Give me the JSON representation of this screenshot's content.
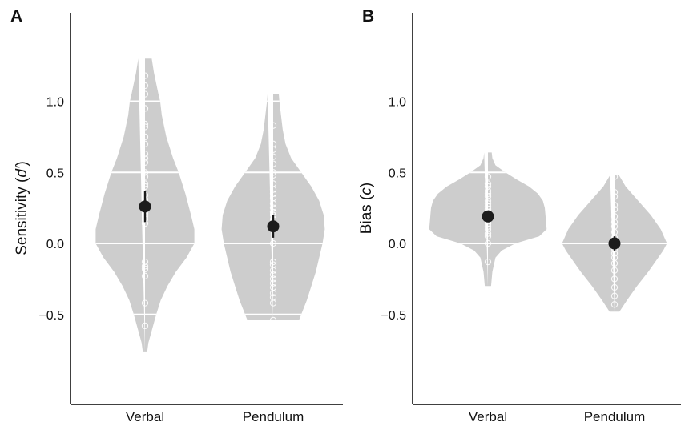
{
  "figure": {
    "colors": {
      "violin": "#cdcdcd",
      "gridline": "#ffffff",
      "point": "#ffffff",
      "mean": "#1c1c1c",
      "axis": "#000000"
    }
  },
  "chart_data": [
    {
      "panel": "A",
      "type": "violin",
      "ylabel_plain": "Sensitivity (",
      "ylabel_italic": "d′",
      "ylabel_close": ")",
      "ylim": [
        -1.1,
        1.32
      ],
      "yticks": [
        1.0,
        0.5,
        0.0,
        -0.5
      ],
      "ytick_labels": [
        "1.0",
        "0.5",
        "0.0",
        "−0.5"
      ],
      "categories": [
        "Verbal",
        "Pendulum"
      ],
      "violins": [
        {
          "category": "Verbal",
          "mean": 0.26,
          "ci": [
            0.15,
            0.37
          ],
          "profile": [
            [
              1.3,
              0.12
            ],
            [
              1.2,
              0.16
            ],
            [
              1.05,
              0.24
            ],
            [
              1.0,
              0.27
            ],
            [
              0.9,
              0.3
            ],
            [
              0.75,
              0.38
            ],
            [
              0.6,
              0.5
            ],
            [
              0.5,
              0.6
            ],
            [
              0.35,
              0.72
            ],
            [
              0.2,
              0.82
            ],
            [
              0.1,
              0.88
            ],
            [
              0.0,
              0.88
            ],
            [
              -0.1,
              0.74
            ],
            [
              -0.2,
              0.55
            ],
            [
              -0.3,
              0.4
            ],
            [
              -0.4,
              0.28
            ],
            [
              -0.5,
              0.2
            ],
            [
              -0.6,
              0.13
            ],
            [
              -0.7,
              0.06
            ],
            [
              -0.76,
              0.04
            ]
          ],
          "points": [
            1.18,
            1.11,
            1.05,
            0.95,
            0.84,
            0.82,
            0.75,
            0.7,
            0.63,
            0.6,
            0.57,
            0.5,
            0.47,
            0.42,
            0.4,
            0.34,
            0.31,
            0.27,
            0.23,
            0.21,
            0.19,
            0.17,
            0.14,
            -0.13,
            -0.16,
            -0.18,
            -0.23,
            -0.42,
            -0.58
          ]
        },
        {
          "category": "Pendulum",
          "mean": 0.12,
          "ci": [
            0.04,
            0.2
          ],
          "profile": [
            [
              1.05,
              0.1
            ],
            [
              1.0,
              0.11
            ],
            [
              0.9,
              0.14
            ],
            [
              0.8,
              0.17
            ],
            [
              0.7,
              0.22
            ],
            [
              0.6,
              0.32
            ],
            [
              0.5,
              0.5
            ],
            [
              0.4,
              0.68
            ],
            [
              0.3,
              0.82
            ],
            [
              0.2,
              0.9
            ],
            [
              0.1,
              0.92
            ],
            [
              0.0,
              0.88
            ],
            [
              -0.1,
              0.82
            ],
            [
              -0.2,
              0.76
            ],
            [
              -0.3,
              0.68
            ],
            [
              -0.4,
              0.6
            ],
            [
              -0.45,
              0.55
            ],
            [
              -0.5,
              0.5
            ],
            [
              -0.54,
              0.46
            ]
          ],
          "points": [
            0.83,
            0.7,
            0.66,
            0.61,
            0.56,
            0.5,
            0.48,
            0.42,
            0.38,
            0.35,
            0.32,
            0.28,
            0.25,
            0.22,
            0.2,
            0.17,
            0.13,
            0.0,
            -0.13,
            -0.15,
            -0.19,
            -0.22,
            -0.25,
            -0.28,
            -0.31,
            -0.35,
            -0.38,
            -0.42,
            -0.54
          ]
        }
      ]
    },
    {
      "panel": "B",
      "type": "violin",
      "ylabel_plain": "Bias (",
      "ylabel_italic": "c",
      "ylabel_close": ")",
      "ylim": [
        -1.1,
        1.62
      ],
      "yticks": [
        1.0,
        0.5,
        0.0,
        -0.5
      ],
      "ytick_labels": [
        "1.0",
        "0.5",
        "0.0",
        "−0.5"
      ],
      "categories": [
        "Verbal",
        "Pendulum"
      ],
      "violins": [
        {
          "category": "Verbal",
          "mean": 0.19,
          "ci": [
            0.16,
            0.22
          ],
          "profile": [
            [
              0.64,
              0.06
            ],
            [
              0.6,
              0.07
            ],
            [
              0.55,
              0.12
            ],
            [
              0.5,
              0.28
            ],
            [
              0.45,
              0.46
            ],
            [
              0.4,
              0.66
            ],
            [
              0.35,
              0.8
            ],
            [
              0.3,
              0.88
            ],
            [
              0.25,
              0.91
            ],
            [
              0.2,
              0.92
            ],
            [
              0.15,
              0.93
            ],
            [
              0.1,
              0.94
            ],
            [
              0.05,
              0.82
            ],
            [
              0.0,
              0.44
            ],
            [
              -0.05,
              0.22
            ],
            [
              -0.1,
              0.12
            ],
            [
              -0.2,
              0.07
            ],
            [
              -0.3,
              0.05
            ]
          ],
          "points": [
            0.47,
            0.42,
            0.4,
            0.37,
            0.35,
            0.33,
            0.3,
            0.28,
            0.26,
            0.24,
            0.22,
            0.2,
            0.18,
            0.16,
            0.14,
            0.12,
            0.1,
            0.07,
            0.05,
            0.0,
            -0.13
          ]
        },
        {
          "category": "Pendulum",
          "mean": 0.0,
          "ci": [
            -0.05,
            0.05
          ],
          "profile": [
            [
              0.48,
              0.07
            ],
            [
              0.4,
              0.18
            ],
            [
              0.3,
              0.38
            ],
            [
              0.2,
              0.58
            ],
            [
              0.1,
              0.74
            ],
            [
              0.0,
              0.84
            ],
            [
              -0.05,
              0.78
            ],
            [
              -0.1,
              0.7
            ],
            [
              -0.2,
              0.54
            ],
            [
              -0.3,
              0.36
            ],
            [
              -0.4,
              0.2
            ],
            [
              -0.48,
              0.08
            ]
          ],
          "points": [
            0.47,
            0.36,
            0.33,
            0.27,
            0.24,
            0.19,
            0.15,
            0.12,
            0.08,
            0.04,
            0.0,
            -0.04,
            -0.07,
            -0.1,
            -0.14,
            -0.19,
            -0.25,
            -0.31,
            -0.37,
            -0.43
          ]
        }
      ]
    }
  ]
}
